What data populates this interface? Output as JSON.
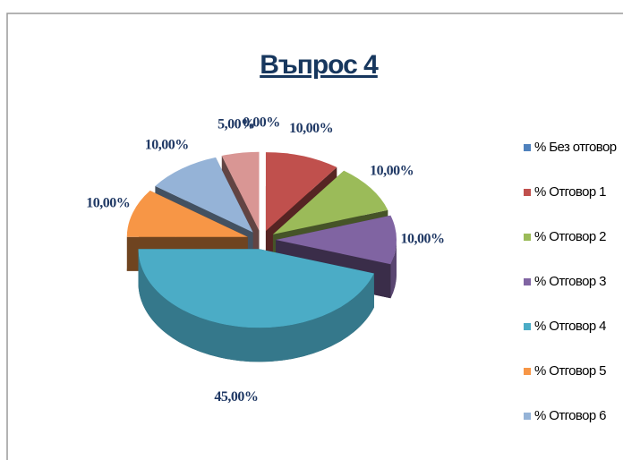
{
  "chart_data": {
    "type": "pie",
    "title": "Въпрос 4",
    "categories": [
      "% Без отговор",
      "% Отговор 1",
      "% Отговор 2",
      "% Отговор 3",
      "% Отговор 4",
      "% Отговор 5",
      "% Отговор 6",
      null
    ],
    "values": [
      0,
      10,
      10,
      10,
      45,
      10,
      10,
      5
    ],
    "value_labels": [
      "0,00%",
      "10,00%",
      "10,00%",
      "10,00%",
      "45,00%",
      "10,00%",
      "10,00%",
      "5,00%"
    ],
    "colors": [
      "#4f81bd",
      "#c0504d",
      "#9bbb59",
      "#8064a2",
      "#4bacc6",
      "#f79646",
      "#95b3d7",
      "#d99694"
    ],
    "legend": "right"
  }
}
